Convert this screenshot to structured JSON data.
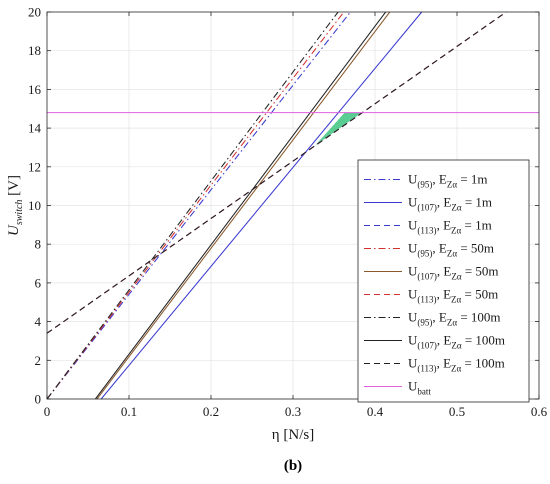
{
  "chart_data": {
    "type": "line",
    "title": "",
    "xlabel": "η [N/s]",
    "ylabel_main": "U",
    "ylabel_sub": "switch",
    "ylabel_unit": "[V]",
    "xlim": [
      0,
      0.6
    ],
    "ylim": [
      0,
      20
    ],
    "x_ticks": [
      0,
      0.1,
      0.2,
      0.3,
      0.4,
      0.5,
      0.6
    ],
    "x_tick_labels": [
      "0",
      "0.1",
      "0.2",
      "0.3",
      "0.4",
      "0.5",
      "0.6"
    ],
    "y_ticks": [
      0,
      2,
      4,
      6,
      8,
      10,
      12,
      14,
      16,
      18,
      20
    ],
    "y_tick_labels": [
      "0",
      "2",
      "4",
      "6",
      "8",
      "10",
      "12",
      "14",
      "16",
      "18",
      "20"
    ],
    "grid": true,
    "legend_position": "right",
    "caption": "(b)",
    "series": [
      {
        "name_main": "U",
        "name_sub": "(95)",
        "name_e": ", E",
        "name_esub": "Zα",
        "name_eq": " = 1m",
        "color": "#3a3ad0",
        "dash": "dashdot",
        "x": [
          0,
          0.37
        ],
        "y": [
          0,
          20
        ]
      },
      {
        "name_main": "U",
        "name_sub": "(107)",
        "name_e": ", E",
        "name_esub": "Zα",
        "name_eq": " = 1m",
        "color": "#3a3ad0",
        "dash": "solid",
        "x": [
          0.066,
          0.457
        ],
        "y": [
          0,
          20
        ]
      },
      {
        "name_main": "U",
        "name_sub": "(113)",
        "name_e": ", E",
        "name_esub": "Zα",
        "name_eq": " = 1m",
        "color": "#3a3ad0",
        "dash": "dashed",
        "x": [
          0,
          0.56
        ],
        "y": [
          3.4,
          20
        ]
      },
      {
        "name_main": "U",
        "name_sub": "(95)",
        "name_e": ", E",
        "name_esub": "Zα",
        "name_eq": " = 50m",
        "color": "#d43030",
        "dash": "dashdot",
        "x": [
          0,
          0.362
        ],
        "y": [
          0,
          20
        ]
      },
      {
        "name_main": "U",
        "name_sub": "(107)",
        "name_e": ", E",
        "name_esub": "Zα",
        "name_eq": " = 50m",
        "color": "#8b5a2b",
        "dash": "solid",
        "x": [
          0.061,
          0.418
        ],
        "y": [
          0,
          20
        ]
      },
      {
        "name_main": "U",
        "name_sub": "(113)",
        "name_e": ", E",
        "name_esub": "Zα",
        "name_eq": " = 50m",
        "color": "#d43030",
        "dash": "dashed",
        "x": [
          0,
          0.56
        ],
        "y": [
          3.4,
          20
        ]
      },
      {
        "name_main": "U",
        "name_sub": "(95)",
        "name_e": ", E",
        "name_esub": "Zα",
        "name_eq": " = 100m",
        "color": "#222222",
        "dash": "dashdot",
        "x": [
          0,
          0.355
        ],
        "y": [
          0,
          20
        ]
      },
      {
        "name_main": "U",
        "name_sub": "(107)",
        "name_e": ", E",
        "name_esub": "Zα",
        "name_eq": " = 100m",
        "color": "#222222",
        "dash": "solid",
        "x": [
          0.059,
          0.413
        ],
        "y": [
          0,
          20
        ]
      },
      {
        "name_main": "U",
        "name_sub": "(113)",
        "name_e": ", E",
        "name_esub": "Zα",
        "name_eq": " = 100m",
        "color": "#222222",
        "dash": "dashed",
        "x": [
          0,
          0.56
        ],
        "y": [
          3.4,
          20
        ]
      },
      {
        "name_main": "U",
        "name_sub": "batt",
        "name_e": "",
        "name_esub": "",
        "name_eq": "",
        "color": "#e060e0",
        "dash": "solid",
        "x": [
          0,
          0.6
        ],
        "y": [
          14.8,
          14.8
        ]
      }
    ],
    "shaded_region": {
      "color": "#3cc47f",
      "x": [
        0.327,
        0.363,
        0.384
      ],
      "y": [
        13.1,
        14.8,
        14.8
      ]
    }
  }
}
